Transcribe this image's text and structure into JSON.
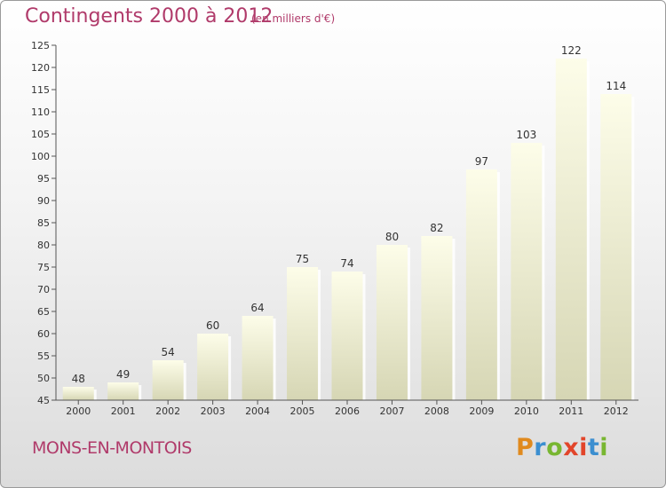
{
  "header": {
    "title": "Contingents 2000 à 2012",
    "subtitle": "(en milliers d'€)"
  },
  "footer": {
    "commune": "MONS-EN-MONTOIS"
  },
  "logo": {
    "letters": [
      "P",
      "r",
      "o",
      "x",
      "i",
      "t",
      "i"
    ],
    "colors": [
      "#e08a1e",
      "#3c8fd0",
      "#78b631",
      "#e2452a",
      "#e2452a",
      "#3c8fd0",
      "#78b631"
    ]
  },
  "colors": {
    "title": "#b03a6a",
    "bar_top": "#fdfde9",
    "bar_bottom": "#d6d6b4",
    "axis": "#555555"
  },
  "chart_data": {
    "type": "bar",
    "categories": [
      "2000",
      "2001",
      "2002",
      "2003",
      "2004",
      "2005",
      "2006",
      "2007",
      "2008",
      "2009",
      "2010",
      "2011",
      "2012"
    ],
    "values": [
      48,
      49,
      54,
      60,
      64,
      75,
      74,
      80,
      82,
      97,
      103,
      122,
      114
    ],
    "title": "Contingents 2000 à 2012",
    "ylim": [
      45,
      125
    ],
    "yticks": [
      45,
      50,
      55,
      60,
      65,
      70,
      75,
      80,
      85,
      90,
      95,
      100,
      105,
      110,
      115,
      120,
      125
    ],
    "grid": false,
    "data_labels": true
  }
}
